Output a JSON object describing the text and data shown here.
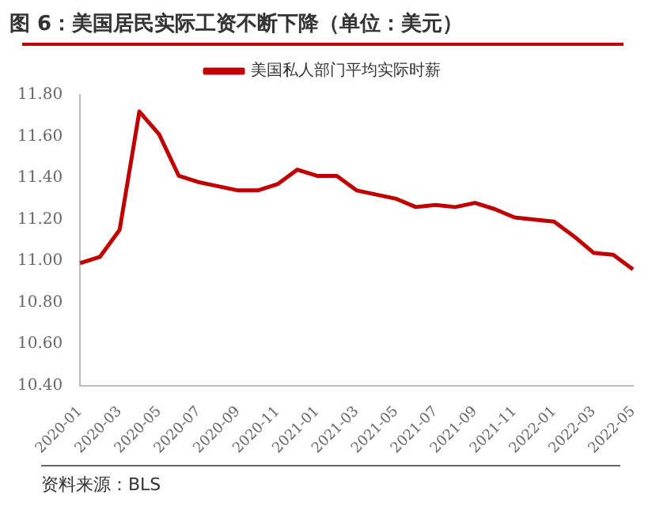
{
  "chart_data": {
    "type": "line",
    "title": "图 6：美国居民实际工资不断下降（单位：美元）",
    "categories": [
      "2020-01",
      null,
      "2020-03",
      null,
      "2020-05",
      null,
      "2020-07",
      null,
      "2020-09",
      null,
      "2020-11",
      null,
      "2021-01",
      null,
      "2021-03",
      null,
      "2021-05",
      null,
      "2021-07",
      null,
      "2021-09",
      null,
      "2021-11",
      null,
      "2022-01",
      null,
      "2022-03",
      null,
      "2022-05"
    ],
    "series": [
      {
        "name": "美国私人部门平均实际时薪",
        "color": "#c00000",
        "values": [
          10.99,
          11.02,
          11.15,
          11.72,
          11.61,
          11.41,
          11.38,
          11.36,
          11.34,
          11.34,
          11.37,
          11.44,
          11.41,
          11.41,
          11.34,
          11.32,
          11.3,
          11.26,
          11.27,
          11.26,
          11.28,
          11.25,
          11.21,
          11.2,
          11.19,
          11.12,
          11.04,
          11.03,
          10.96
        ]
      }
    ],
    "ylim": [
      10.4,
      11.8
    ],
    "yticks": [
      {
        "value": 10.4,
        "label": "10.40"
      },
      {
        "value": 10.6,
        "label": "10.60"
      },
      {
        "value": 10.8,
        "label": "10.80"
      },
      {
        "value": 11,
        "label": "11.00"
      },
      {
        "value": 11.2,
        "label": "11.20"
      },
      {
        "value": 11.4,
        "label": "11.40"
      },
      {
        "value": 11.6,
        "label": "11.60"
      },
      {
        "value": 11.8,
        "label": "11.80"
      }
    ],
    "grid": false,
    "legend": "top",
    "marker": "none",
    "line_style": "solid",
    "annotations": [
      "资料来源：BLS"
    ]
  }
}
